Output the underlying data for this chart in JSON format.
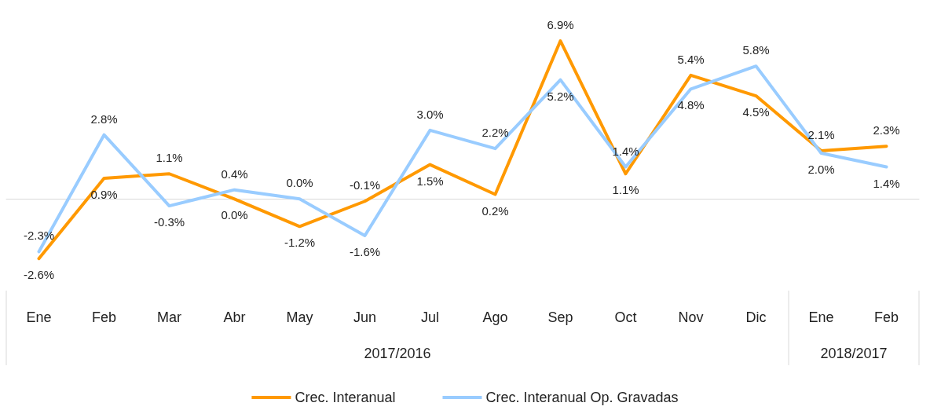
{
  "chart_data": {
    "type": "line",
    "categories": [
      "Ene",
      "Feb",
      "Mar",
      "Abr",
      "May",
      "Jun",
      "Jul",
      "Ago",
      "Sep",
      "Oct",
      "Nov",
      "Dic",
      "Ene",
      "Feb"
    ],
    "series": [
      {
        "name": "Crec. Interanual",
        "color": "#ff9900",
        "values": [
          -2.6,
          0.9,
          1.1,
          0.0,
          -1.2,
          -0.1,
          1.5,
          0.2,
          6.9,
          1.1,
          5.4,
          4.5,
          2.1,
          2.3
        ],
        "value_labels": [
          "-2.6%",
          "0.9%",
          "1.1%",
          "0.0%",
          "-1.2%",
          "-0.1%",
          "1.5%",
          "0.2%",
          "6.9%",
          "1.1%",
          "5.4%",
          "4.5%",
          "2.1%",
          "2.3%"
        ]
      },
      {
        "name": "Crec. Interanual Op. Gravadas",
        "color": "#99ccff",
        "values": [
          -2.3,
          2.8,
          -0.3,
          0.4,
          0.0,
          -1.6,
          3.0,
          2.2,
          5.2,
          1.4,
          4.8,
          5.8,
          2.0,
          1.4
        ],
        "value_labels": [
          "-2.3%",
          "2.8%",
          "-0.3%",
          "0.4%",
          "0.0%",
          "-1.6%",
          "3.0%",
          "2.2%",
          "5.2%",
          "1.4%",
          "4.8%",
          "5.8%",
          "2.0%",
          "1.4%"
        ]
      }
    ],
    "annotations": [
      "2017/2016",
      "2018/2017"
    ],
    "tick_labels": "x",
    "legend": "bottom",
    "marker": "none",
    "line_style": "solid"
  }
}
